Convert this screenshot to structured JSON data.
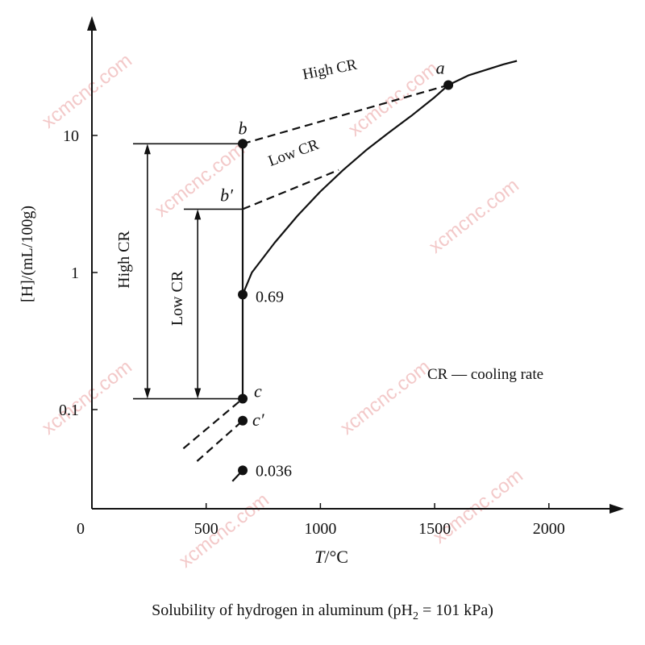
{
  "chart_data": {
    "type": "line",
    "title": "Solubility of hydrogen in aluminum",
    "title_condition": "(pH2 = 101 kPa)",
    "xlabel": "T/°C",
    "ylabel": "[H]/(mL/100g)",
    "x_ticks": [
      "0",
      "500",
      "1000",
      "1500",
      "2000"
    ],
    "y_ticks": [
      "0.1",
      "1",
      "10"
    ],
    "xlim": [
      0,
      2300
    ],
    "ylim": [
      0.015,
      50
    ],
    "y_scale": "log",
    "grid": false,
    "series": [
      {
        "style": "solid",
        "x": [
          660,
          700,
          800,
          900,
          1000,
          1100,
          1200,
          1300,
          1400,
          1500,
          1560,
          1650,
          1800,
          1860
        ],
        "values": [
          0.69,
          1.0,
          1.65,
          2.6,
          3.9,
          5.6,
          7.8,
          10.5,
          14.0,
          19.0,
          23.3,
          27.5,
          33.0,
          35.0
        ]
      },
      {
        "style": "solid",
        "x": [
          660,
          660
        ],
        "values": [
          0.12,
          8.7
        ]
      },
      {
        "style": "solid",
        "x": [
          615,
          660
        ],
        "values": [
          0.03,
          0.036
        ]
      },
      {
        "name": "High CR",
        "style": "dashed",
        "x": [
          660,
          1560
        ],
        "values": [
          8.7,
          23.3
        ]
      },
      {
        "name": "Low CR",
        "style": "dashed",
        "x": [
          660,
          1080
        ],
        "values": [
          2.9,
          5.6
        ]
      },
      {
        "style": "dashed",
        "x": [
          400,
          660
        ],
        "values": [
          0.052,
          0.12
        ]
      },
      {
        "style": "dashed",
        "x": [
          460,
          660
        ],
        "values": [
          0.042,
          0.083
        ]
      }
    ],
    "points": [
      {
        "label": "a",
        "x": 1560,
        "y": 23.3
      },
      {
        "label": "b",
        "x": 660,
        "y": 8.7
      },
      {
        "label": "b′",
        "x": 660,
        "y": 2.9
      },
      {
        "label": "0.69",
        "x": 660,
        "y": 0.69
      },
      {
        "label": "c",
        "x": 660,
        "y": 0.12
      },
      {
        "label": "c′",
        "x": 660,
        "y": 0.083
      },
      {
        "label": "0.036",
        "x": 660,
        "y": 0.036
      }
    ],
    "ranges": [
      {
        "label": "High CR",
        "x": 250,
        "from": 0.12,
        "to": 8.7
      },
      {
        "label": "Low CR",
        "x": 470,
        "from": 0.12,
        "to": 2.9
      }
    ],
    "annotations": {
      "legend_note": "CR — cooling rate"
    },
    "watermark": "xcmcnc.com"
  }
}
